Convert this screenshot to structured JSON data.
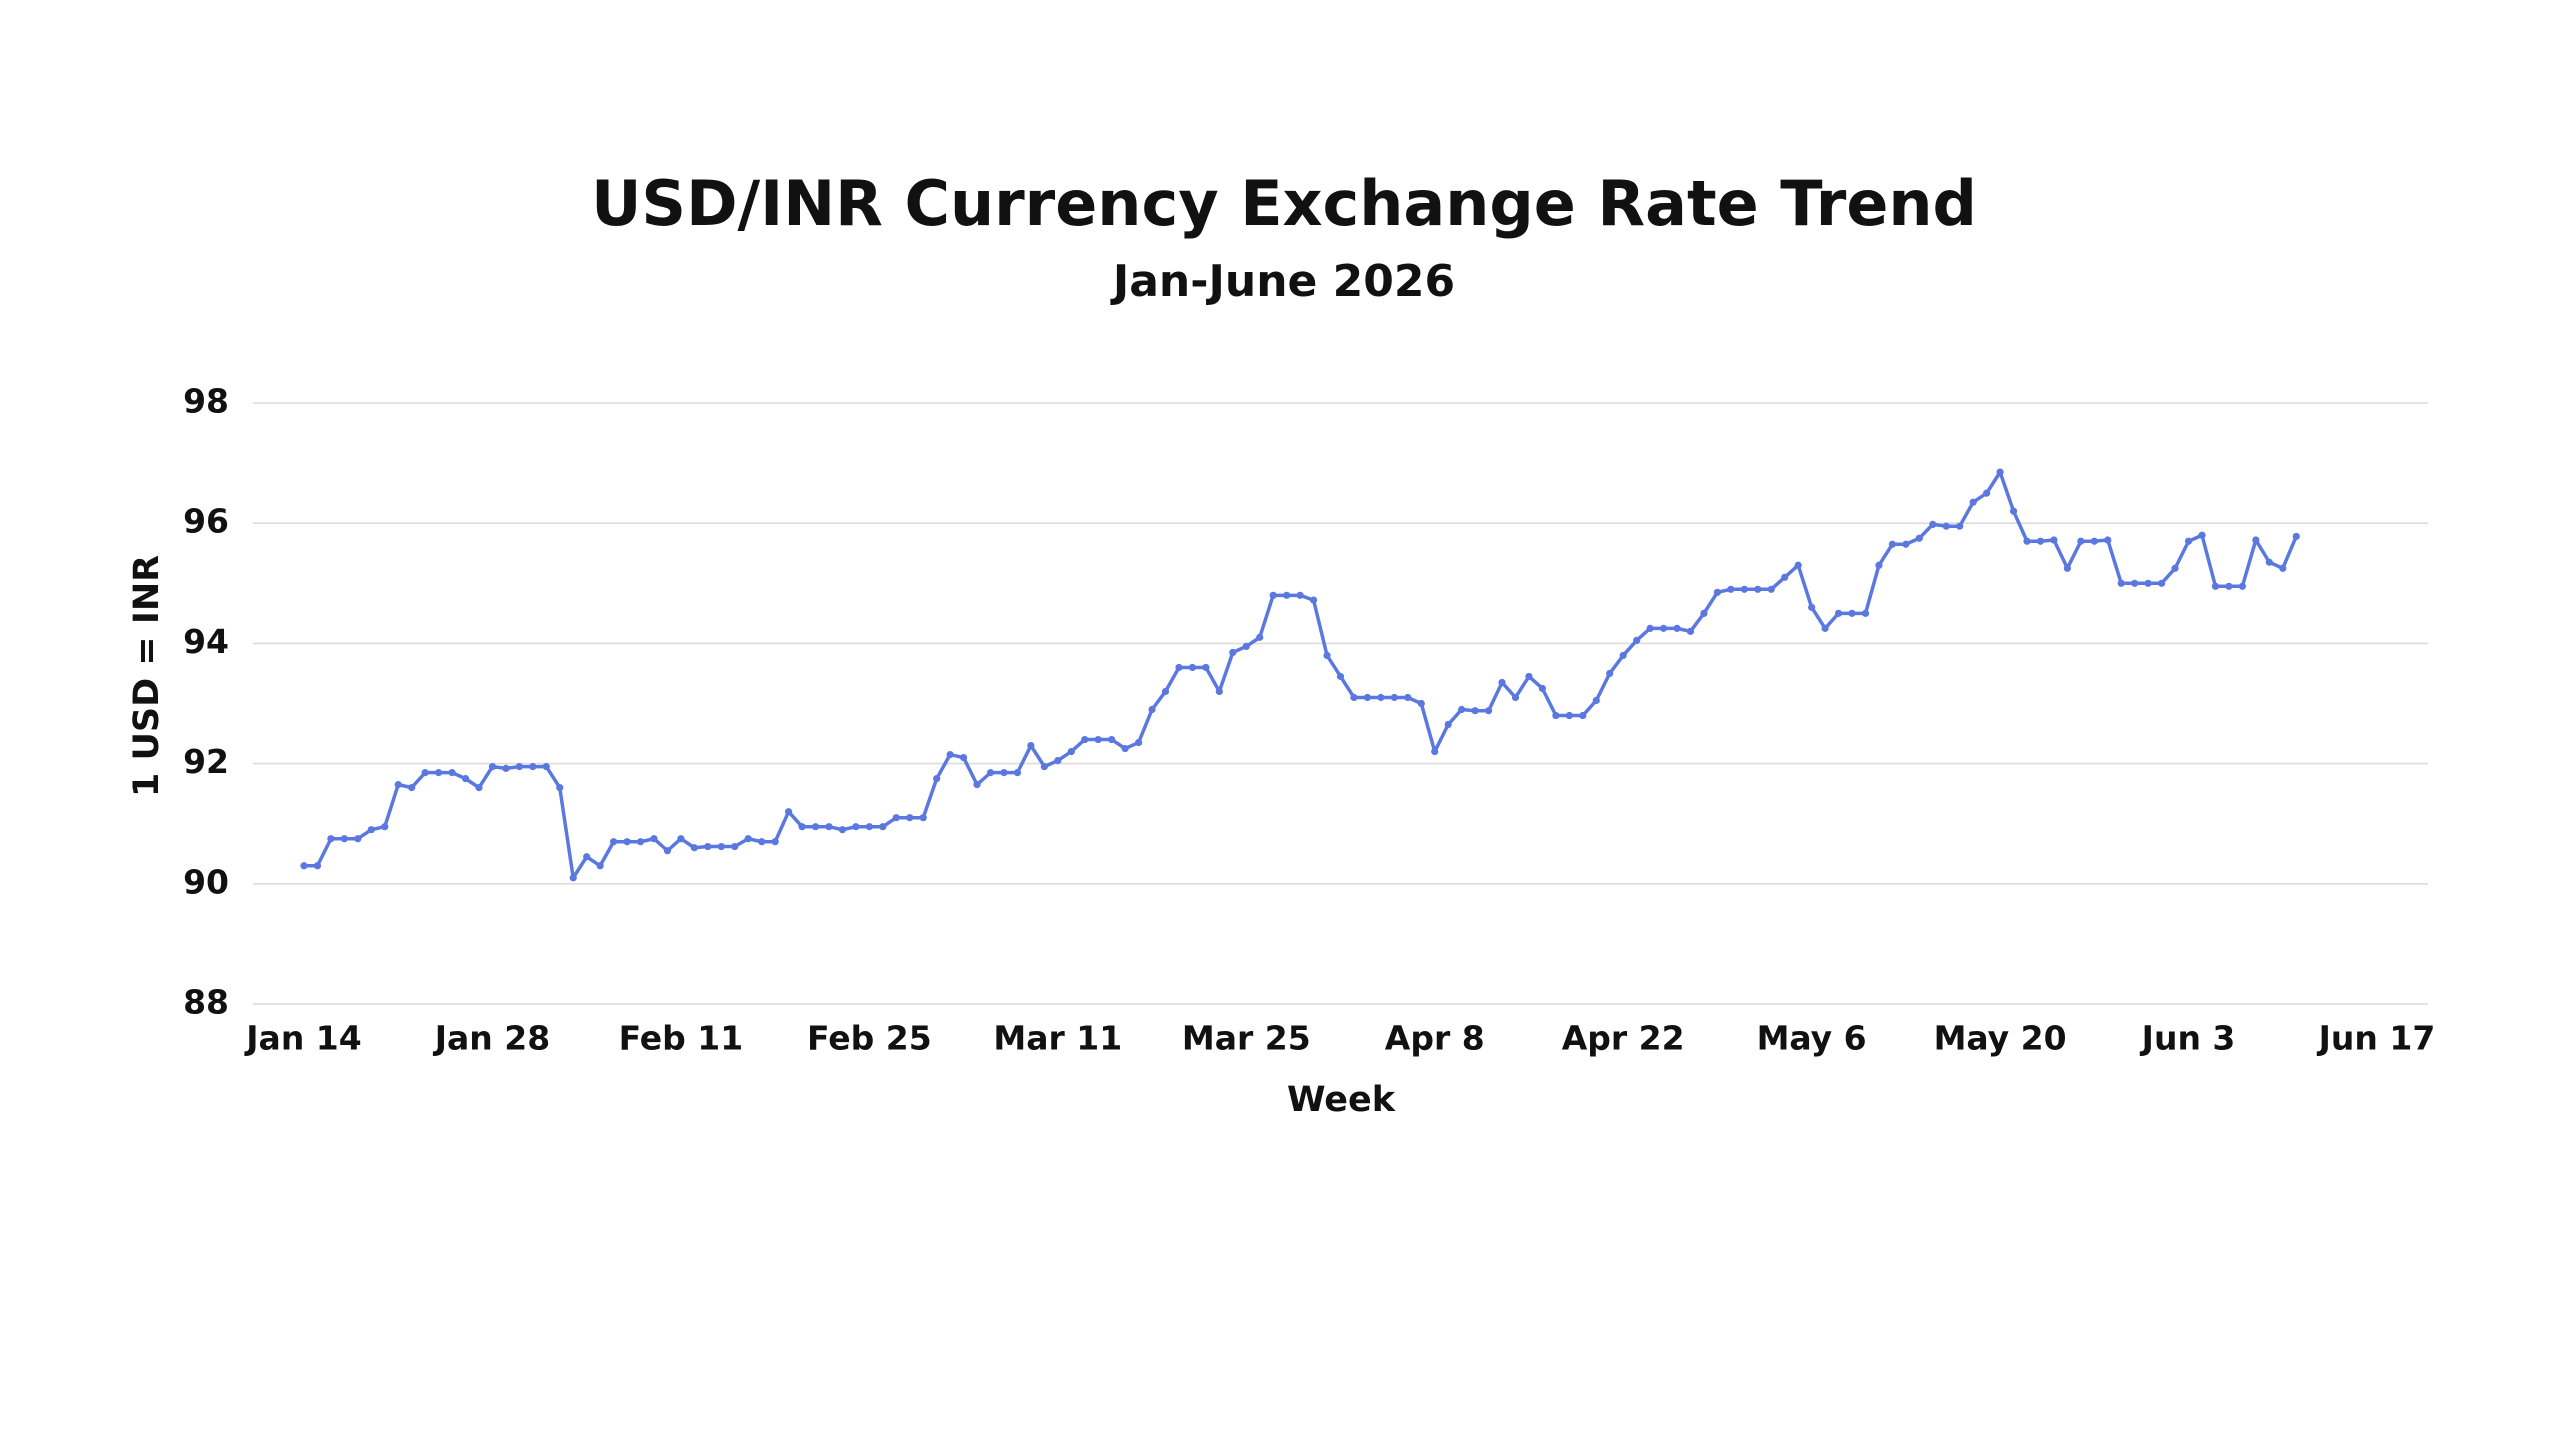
{
  "chart_data": {
    "type": "line",
    "title": "USD/INR Currency Exchange Rate Trend",
    "subtitle": "Jan-June 2026",
    "x_label": "Week",
    "y_label": "1 USD = INR",
    "x": [
      "2026-01-14",
      "2026-01-15",
      "2026-01-16",
      "2026-01-17",
      "2026-01-18",
      "2026-01-19",
      "2026-01-20",
      "2026-01-21",
      "2026-01-22",
      "2026-01-23",
      "2026-01-24",
      "2026-01-25",
      "2026-01-26",
      "2026-01-27",
      "2026-01-28",
      "2026-01-29",
      "2026-01-30",
      "2026-01-31",
      "2026-02-01",
      "2026-02-02",
      "2026-02-03",
      "2026-02-04",
      "2026-02-05",
      "2026-02-06",
      "2026-02-07",
      "2026-02-08",
      "2026-02-09",
      "2026-02-10",
      "2026-02-11",
      "2026-02-12",
      "2026-02-13",
      "2026-02-14",
      "2026-02-15",
      "2026-02-16",
      "2026-02-17",
      "2026-02-18",
      "2026-02-19",
      "2026-02-20",
      "2026-02-21",
      "2026-02-22",
      "2026-02-23",
      "2026-02-24",
      "2026-02-25",
      "2026-02-26",
      "2026-02-27",
      "2026-02-28",
      "2026-03-01",
      "2026-03-02",
      "2026-03-03",
      "2026-03-04",
      "2026-03-05",
      "2026-03-06",
      "2026-03-07",
      "2026-03-08",
      "2026-03-09",
      "2026-03-10",
      "2026-03-11",
      "2026-03-12",
      "2026-03-13",
      "2026-03-14",
      "2026-03-15",
      "2026-03-16",
      "2026-03-17",
      "2026-03-18",
      "2026-03-19",
      "2026-03-20",
      "2026-03-21",
      "2026-03-22",
      "2026-03-23",
      "2026-03-24",
      "2026-03-25",
      "2026-03-26",
      "2026-03-27",
      "2026-03-28",
      "2026-03-29",
      "2026-03-30",
      "2026-03-31",
      "2026-04-01",
      "2026-04-02",
      "2026-04-03",
      "2026-04-04",
      "2026-04-05",
      "2026-04-06",
      "2026-04-07",
      "2026-04-08",
      "2026-04-09",
      "2026-04-10",
      "2026-04-11",
      "2026-04-12",
      "2026-04-13",
      "2026-04-14",
      "2026-04-15",
      "2026-04-16",
      "2026-04-17",
      "2026-04-18",
      "2026-04-19",
      "2026-04-20",
      "2026-04-21",
      "2026-04-22",
      "2026-04-23",
      "2026-04-24",
      "2026-04-25",
      "2026-04-26",
      "2026-04-27",
      "2026-04-28",
      "2026-04-29",
      "2026-04-30",
      "2026-05-01",
      "2026-05-02",
      "2026-05-03",
      "2026-05-04",
      "2026-05-05",
      "2026-05-06",
      "2026-05-07",
      "2026-05-08",
      "2026-05-09",
      "2026-05-10",
      "2026-05-11",
      "2026-05-12",
      "2026-05-13",
      "2026-05-14",
      "2026-05-15",
      "2026-05-16",
      "2026-05-17",
      "2026-05-18",
      "2026-05-19",
      "2026-05-20",
      "2026-05-21",
      "2026-05-22",
      "2026-05-23",
      "2026-05-24",
      "2026-05-25",
      "2026-05-26",
      "2026-05-27",
      "2026-05-28",
      "2026-05-29",
      "2026-05-30",
      "2026-05-31",
      "2026-06-01",
      "2026-06-02",
      "2026-06-03",
      "2026-06-04",
      "2026-06-05",
      "2026-06-06",
      "2026-06-07",
      "2026-06-08",
      "2026-06-09",
      "2026-06-10",
      "2026-06-11"
    ],
    "series": [
      {
        "color": "#5a78e0",
        "values": [
          90.3,
          90.3,
          90.75,
          90.75,
          90.75,
          90.9,
          90.95,
          91.65,
          91.6,
          91.85,
          91.85,
          91.85,
          91.75,
          91.6,
          91.95,
          91.92,
          91.95,
          91.95,
          91.95,
          91.6,
          90.1,
          90.45,
          90.3,
          90.7,
          90.7,
          90.7,
          90.75,
          90.55,
          90.75,
          90.6,
          90.62,
          90.62,
          90.62,
          90.75,
          90.7,
          90.7,
          91.2,
          90.95,
          90.95,
          90.95,
          90.9,
          90.95,
          90.95,
          90.95,
          91.1,
          91.1,
          91.1,
          91.75,
          92.15,
          92.1,
          91.65,
          91.85,
          91.85,
          91.85,
          92.3,
          91.95,
          92.05,
          92.2,
          92.4,
          92.4,
          92.4,
          92.25,
          92.35,
          92.9,
          93.2,
          93.6,
          93.6,
          93.6,
          93.2,
          93.85,
          93.95,
          94.1,
          94.8,
          94.8,
          94.8,
          94.72,
          93.8,
          93.45,
          93.1,
          93.1,
          93.1,
          93.1,
          93.1,
          93.0,
          92.2,
          92.65,
          92.9,
          92.88,
          92.88,
          93.35,
          93.1,
          93.45,
          93.25,
          92.8,
          92.8,
          92.8,
          93.05,
          93.5,
          93.8,
          94.05,
          94.25,
          94.25,
          94.25,
          94.2,
          94.5,
          94.85,
          94.9,
          94.9,
          94.9,
          94.9,
          95.1,
          95.3,
          94.6,
          94.25,
          94.5,
          94.5,
          94.5,
          95.3,
          95.65,
          95.65,
          95.75,
          95.98,
          95.95,
          95.95,
          96.35,
          96.5,
          96.85,
          96.2,
          95.7,
          95.7,
          95.72,
          95.25,
          95.7,
          95.7,
          95.72,
          95.0,
          95.0,
          95.0,
          95.0,
          95.25,
          95.7,
          95.8,
          94.95,
          94.95,
          94.95,
          95.72,
          95.35,
          95.25,
          95.78
        ]
      }
    ],
    "xlim": [
      "2026-01-14",
      "2026-06-17"
    ],
    "xticks": [
      {
        "value": "2026-01-14",
        "label": "Jan 14"
      },
      {
        "value": "2026-01-28",
        "label": "Jan 28"
      },
      {
        "value": "2026-02-11",
        "label": "Feb 11"
      },
      {
        "value": "2026-02-25",
        "label": "Feb 25"
      },
      {
        "value": "2026-03-11",
        "label": "Mar 11"
      },
      {
        "value": "2026-03-25",
        "label": "Mar 25"
      },
      {
        "value": "2026-04-08",
        "label": "Apr 8"
      },
      {
        "value": "2026-04-22",
        "label": "Apr 22"
      },
      {
        "value": "2026-05-06",
        "label": "May 6"
      },
      {
        "value": "2026-05-20",
        "label": "May 20"
      },
      {
        "value": "2026-06-03",
        "label": "Jun 3"
      },
      {
        "value": "2026-06-17",
        "label": "Jun 17"
      }
    ],
    "ylim": [
      88,
      98
    ],
    "yticks": [
      88,
      90,
      92,
      94,
      96,
      98
    ],
    "grid": true,
    "markers": true
  }
}
